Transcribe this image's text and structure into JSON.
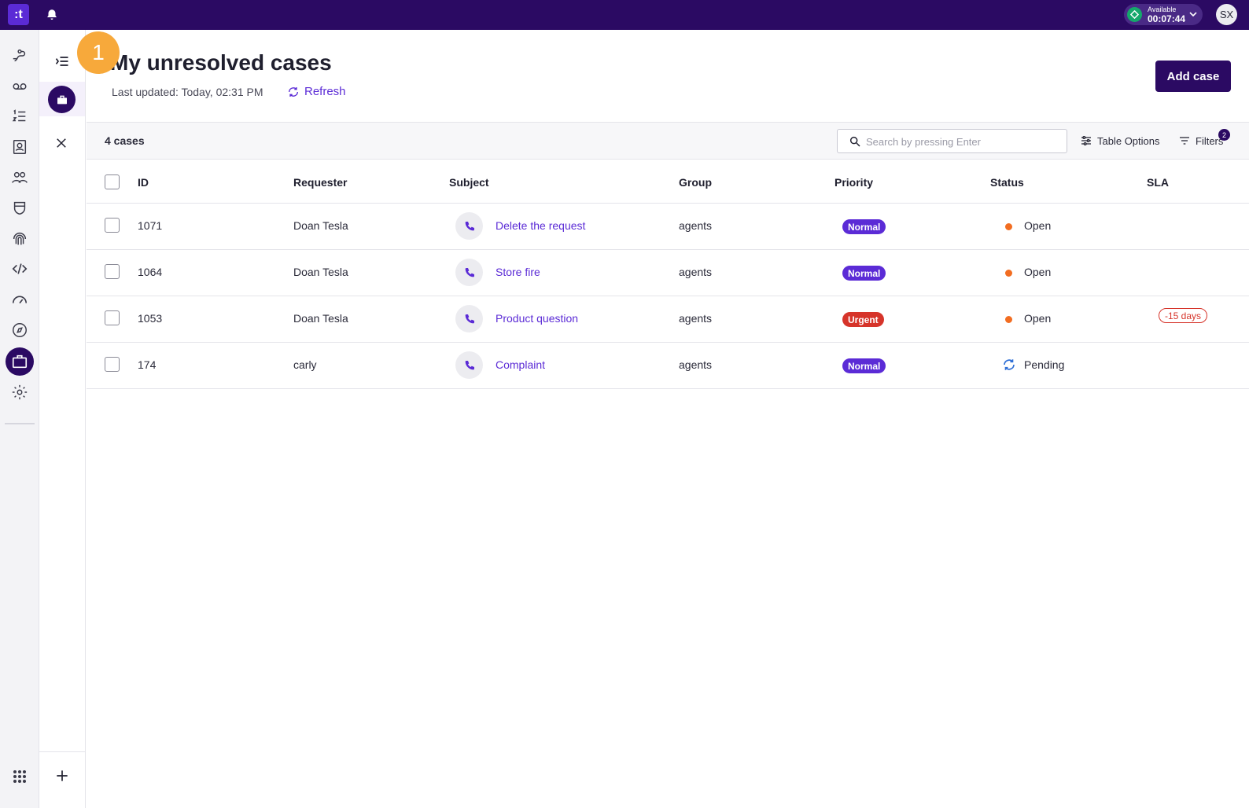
{
  "topbar": {
    "logo_text": ":t",
    "status_label": "Available",
    "status_time": "00:07:44",
    "avatar_initials": "SX",
    "colors": {
      "bar": "#2b0a63",
      "available": "#14a86b"
    }
  },
  "rail": {
    "items": [
      {
        "icon": "routing-icon"
      },
      {
        "icon": "voicemail-icon"
      },
      {
        "icon": "list-numbered-icon"
      },
      {
        "icon": "contacts-book-icon"
      },
      {
        "icon": "users-icon"
      },
      {
        "icon": "shield-icon"
      },
      {
        "icon": "fingerprint-icon"
      },
      {
        "icon": "code-icon"
      },
      {
        "icon": "speedometer-icon"
      },
      {
        "icon": "compass-icon"
      },
      {
        "icon": "briefcase-icon",
        "active": true
      },
      {
        "icon": "gear-icon"
      }
    ],
    "apps_icon": "grid-icon"
  },
  "header": {
    "step_number": "1",
    "title": "My unresolved cases",
    "last_updated": "Last updated:  Today, 02:31 PM",
    "refresh_label": "Refresh",
    "add_case_label": "Add case"
  },
  "toolbar": {
    "cases_count": "4 cases",
    "search_placeholder": "Search by pressing Enter",
    "table_options_label": "Table Options",
    "filters_label": "Filters",
    "filters_count": "2"
  },
  "table": {
    "columns": [
      "ID",
      "Requester",
      "Subject",
      "Group",
      "Priority",
      "Status",
      "SLA"
    ],
    "rows": [
      {
        "id": "1071",
        "requester": "Doan Tesla",
        "subject": "Delete the request",
        "group": "agents",
        "priority": "Normal",
        "status": "Open",
        "sla": ""
      },
      {
        "id": "1064",
        "requester": "Doan Tesla",
        "subject": "Store fire",
        "group": "agents",
        "priority": "Normal",
        "status": "Open",
        "sla": ""
      },
      {
        "id": "1053",
        "requester": "Doan Tesla",
        "subject": "Product question",
        "group": "agents",
        "priority": "Urgent",
        "status": "Open",
        "sla": "-15 days"
      },
      {
        "id": "174",
        "requester": "carly",
        "subject": "Complaint",
        "group": "agents",
        "priority": "Normal",
        "status": "Pending",
        "sla": ""
      }
    ],
    "colors": {
      "normal": "#5b2bd6",
      "urgent": "#d6342a",
      "open": "#f26d21",
      "pending": "#2f6fd6",
      "link": "#5b2bd6"
    }
  }
}
